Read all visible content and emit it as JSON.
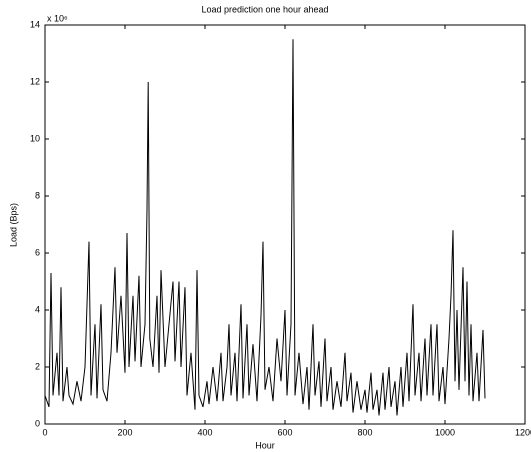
{
  "chart_data": {
    "type": "line",
    "title": "Load prediction one hour ahead",
    "xlabel": "Hour",
    "ylabel": "Load (Bps)",
    "y_multiplier": "x 10⁶",
    "xlim": [
      0,
      1200
    ],
    "xticks": [
      0,
      200,
      400,
      600,
      800,
      1000,
      1200
    ],
    "ylim": [
      0,
      14
    ],
    "yticks": [
      0,
      2,
      4,
      6,
      8,
      10,
      12,
      14
    ],
    "series": [
      {
        "color": "#000000",
        "x": [
          0,
          10,
          15,
          20,
          30,
          35,
          40,
          45,
          55,
          60,
          70,
          80,
          90,
          100,
          110,
          115,
          125,
          130,
          140,
          145,
          155,
          165,
          175,
          180,
          190,
          200,
          205,
          210,
          220,
          225,
          235,
          240,
          250,
          255,
          258,
          262,
          270,
          280,
          285,
          290,
          300,
          310,
          320,
          325,
          335,
          340,
          350,
          355,
          365,
          375,
          380,
          385,
          395,
          405,
          410,
          420,
          430,
          440,
          445,
          455,
          460,
          465,
          475,
          480,
          490,
          495,
          505,
          510,
          520,
          530,
          540,
          545,
          550,
          560,
          570,
          580,
          590,
          600,
          605,
          615,
          620,
          625,
          635,
          645,
          655,
          660,
          670,
          675,
          685,
          690,
          700,
          705,
          715,
          720,
          730,
          740,
          750,
          755,
          765,
          770,
          780,
          790,
          800,
          805,
          815,
          820,
          830,
          835,
          845,
          850,
          860,
          865,
          875,
          880,
          890,
          895,
          905,
          910,
          920,
          925,
          935,
          940,
          950,
          955,
          965,
          970,
          980,
          985,
          995,
          1000,
          1010,
          1015,
          1020,
          1025,
          1030,
          1035,
          1045,
          1050,
          1055,
          1060,
          1065,
          1070,
          1080,
          1085,
          1095,
          1100
        ],
        "values": [
          1.0,
          0.6,
          5.3,
          1.0,
          2.5,
          1.0,
          4.8,
          0.8,
          2.0,
          1.0,
          0.7,
          1.5,
          0.8,
          2.0,
          6.4,
          1.0,
          3.5,
          0.9,
          4.2,
          1.2,
          0.8,
          2.5,
          5.5,
          2.5,
          4.5,
          1.8,
          6.7,
          2.0,
          4.5,
          2.2,
          5.2,
          2.0,
          3.5,
          7.5,
          12.0,
          3.0,
          2.0,
          4.5,
          1.8,
          5.4,
          2.0,
          3.5,
          5.0,
          2.2,
          5.0,
          2.0,
          4.8,
          1.0,
          2.5,
          0.5,
          5.4,
          1.0,
          0.6,
          1.5,
          0.7,
          2.0,
          0.8,
          2.5,
          0.8,
          2.0,
          3.5,
          1.0,
          2.5,
          0.8,
          4.2,
          0.9,
          3.5,
          1.0,
          2.8,
          0.8,
          3.8,
          6.4,
          1.2,
          2.0,
          0.8,
          3.0,
          1.5,
          4.0,
          1.0,
          3.5,
          13.5,
          1.0,
          2.5,
          0.7,
          2.0,
          0.5,
          3.5,
          1.0,
          2.2,
          0.6,
          3.0,
          0.8,
          2.0,
          0.5,
          1.5,
          0.6,
          2.5,
          0.8,
          1.8,
          0.4,
          1.5,
          0.5,
          1.2,
          0.4,
          1.8,
          0.5,
          1.2,
          0.3,
          1.8,
          0.5,
          2.0,
          0.6,
          1.5,
          0.3,
          2.0,
          0.6,
          2.5,
          0.8,
          4.2,
          1.0,
          2.5,
          0.8,
          3.0,
          1.0,
          3.5,
          1.0,
          3.5,
          0.8,
          2.0,
          0.7,
          3.0,
          4.5,
          6.8,
          1.5,
          4.0,
          1.2,
          5.5,
          1.5,
          5.0,
          1.0,
          3.5,
          0.8,
          2.5,
          0.8,
          3.3,
          0.9
        ]
      }
    ]
  }
}
